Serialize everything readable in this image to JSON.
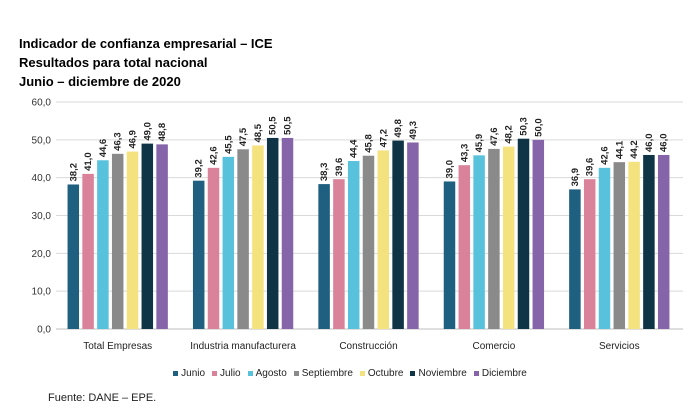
{
  "title_lines": [
    "Indicador de confianza empresarial – ICE",
    "Resultados para total nacional",
    "Junio – diciembre de 2020"
  ],
  "source": "Fuente: DANE – EPE.",
  "chart_data": {
    "type": "bar",
    "title": "Indicador de confianza empresarial – ICE",
    "subtitle": "Resultados para total nacional, Junio – diciembre de 2020",
    "xlabel": "",
    "ylabel": "",
    "ylim": [
      0,
      60
    ],
    "yticks": [
      "0,0",
      "10,0",
      "20,0",
      "30,0",
      "40,0",
      "50,0",
      "60,0"
    ],
    "grid": true,
    "legend_position": "bottom",
    "categories": [
      "Total Empresas",
      "Industria manufacturera",
      "Construcción",
      "Comercio",
      "Servicios"
    ],
    "series": [
      {
        "name": "Junio",
        "color": "#1f5f80",
        "values": [
          38.2,
          39.2,
          38.3,
          39.0,
          36.9
        ],
        "labels": [
          "38,2",
          "39,2",
          "38,3",
          "39,0",
          "36,9"
        ]
      },
      {
        "name": "Julio",
        "color": "#d9829a",
        "values": [
          41.0,
          42.6,
          39.6,
          43.3,
          39.6
        ],
        "labels": [
          "41,0",
          "42,6",
          "39,6",
          "43,3",
          "39,6"
        ]
      },
      {
        "name": "Agosto",
        "color": "#58c2dd",
        "values": [
          44.6,
          45.5,
          44.4,
          45.9,
          42.6
        ],
        "labels": [
          "44,6",
          "45,5",
          "44,4",
          "45,9",
          "42,6"
        ]
      },
      {
        "name": "Septiembre",
        "color": "#8a8a8a",
        "values": [
          46.3,
          47.5,
          45.8,
          47.6,
          44.1
        ],
        "labels": [
          "46,3",
          "47,5",
          "45,8",
          "47,6",
          "44,1"
        ]
      },
      {
        "name": "Octubre",
        "color": "#f4e27e",
        "values": [
          46.9,
          48.5,
          47.2,
          48.2,
          44.2
        ],
        "labels": [
          "46,9",
          "48,5",
          "47,2",
          "48,2",
          "44,2"
        ]
      },
      {
        "name": "Noviembre",
        "color": "#0f3446",
        "values": [
          49.0,
          50.5,
          49.8,
          50.3,
          46.0
        ],
        "labels": [
          "49,0",
          "50,5",
          "49,8",
          "50,3",
          "46,0"
        ]
      },
      {
        "name": "Diciembre",
        "color": "#8664a9",
        "values": [
          48.8,
          50.5,
          49.3,
          50.0,
          46.0
        ],
        "labels": [
          "48,8",
          "50,5",
          "49,3",
          "50,0",
          "46,0"
        ]
      }
    ]
  }
}
